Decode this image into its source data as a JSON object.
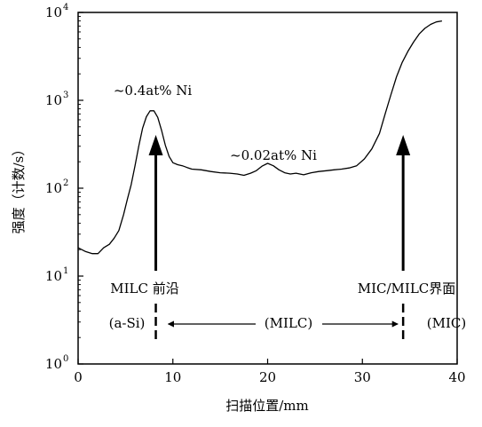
{
  "chart_data": {
    "type": "line",
    "xlabel": "扫描位置/mm",
    "ylabel": "强度（计数/s）",
    "xlim": [
      0,
      40
    ],
    "ylim": [
      1,
      10000
    ],
    "yscale": "log",
    "grid": false,
    "x_ticks": [
      {
        "value": 0,
        "label": "0"
      },
      {
        "value": 10,
        "label": "10"
      },
      {
        "value": 20,
        "label": "20"
      },
      {
        "value": 30,
        "label": "30"
      },
      {
        "value": 40,
        "label": "40"
      }
    ],
    "y_ticks": [
      {
        "value": 1,
        "base": "10",
        "exp": "0"
      },
      {
        "value": 10,
        "base": "10",
        "exp": "1"
      },
      {
        "value": 100,
        "base": "10",
        "exp": "2"
      },
      {
        "value": 1000,
        "base": "10",
        "exp": "3"
      },
      {
        "value": 10000,
        "base": "10",
        "exp": "4"
      }
    ],
    "series": [
      {
        "x": [
          0,
          0.8,
          1.5,
          2.1,
          2.7,
          3.3,
          3.8,
          4.3,
          4.8,
          5.2,
          5.6,
          6.0,
          6.4,
          6.8,
          7.2,
          7.6,
          8.0,
          8.4,
          8.8,
          9.2,
          9.6,
          10.0,
          10.5,
          11.0,
          11.5,
          12.0,
          13.0,
          14.0,
          15.0,
          16.0,
          16.8,
          17.5,
          18.2,
          18.8,
          19.4,
          20.0,
          20.6,
          21.2,
          21.8,
          22.4,
          23.0,
          23.8,
          24.6,
          25.4,
          26.2,
          27.0,
          27.8,
          28.6,
          29.4,
          30.2,
          31.0,
          31.8,
          32.4,
          33.0,
          33.6,
          34.2,
          34.8,
          35.4,
          36.0,
          36.6,
          37.2,
          37.8,
          38.4
        ],
        "y": [
          21,
          19,
          18,
          18,
          21,
          23,
          27,
          33,
          50,
          75,
          110,
          180,
          300,
          480,
          650,
          760,
          760,
          640,
          460,
          310,
          230,
          195,
          185,
          180,
          172,
          165,
          162,
          155,
          150,
          148,
          145,
          140,
          148,
          158,
          178,
          192,
          180,
          162,
          150,
          145,
          148,
          142,
          150,
          155,
          158,
          162,
          165,
          170,
          180,
          215,
          280,
          420,
          700,
          1150,
          1850,
          2700,
          3600,
          4600,
          5700,
          6600,
          7300,
          7800,
          8000
        ]
      }
    ],
    "annotations": {
      "peak1_label": "~0.4at% Ni",
      "mid_label": "~0.02at% Ni",
      "arrow1_label": "MILC 前沿",
      "arrow2_label": "MIC/MILC界面",
      "region_left": "(a-Si)",
      "region_mid": "(MILC)",
      "region_right": "(MIC)"
    },
    "annotation_points": {
      "peak1_arrow_x": 8.2,
      "interface_arrow_x": 34.3
    }
  }
}
